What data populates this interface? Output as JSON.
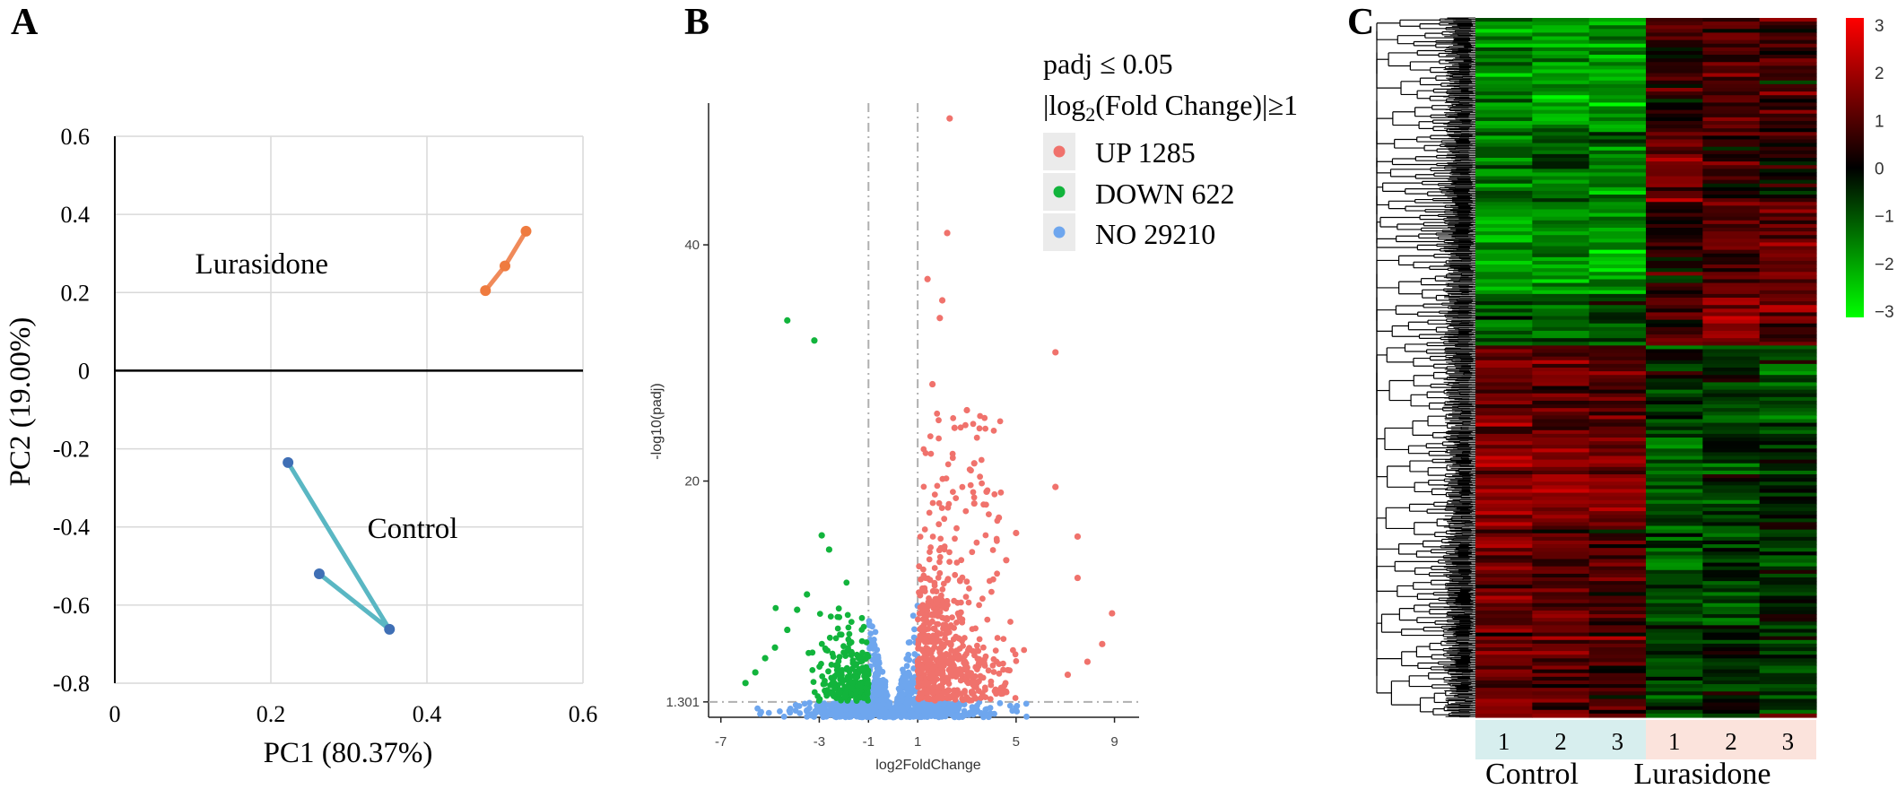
{
  "panels": {
    "a": {
      "letter": "A"
    },
    "b": {
      "letter": "B"
    },
    "c": {
      "letter": "C"
    }
  },
  "chart_data": [
    {
      "id": "pca",
      "type": "scatter",
      "title": "",
      "xlabel": "PC1 (80.37%)",
      "ylabel": "PC2 (19.00%)",
      "xlim": [
        0,
        0.6
      ],
      "ylim": [
        -0.8,
        0.6
      ],
      "x_ticks": [
        0,
        0.2,
        0.4,
        0.6
      ],
      "x_tick_labels": [
        "0",
        "0.2",
        "0.4",
        "0.6"
      ],
      "y_ticks": [
        0.6,
        0.4,
        0.2,
        0,
        -0.2,
        -0.4,
        -0.6,
        -0.8
      ],
      "y_tick_labels": [
        "0.6",
        "0.4",
        "0.2",
        "0",
        "-0.2",
        "-0.4",
        "-0.6",
        "-0.8"
      ],
      "grid": true,
      "series": [
        {
          "name": "Lurasidone",
          "color": "#f08a5a",
          "marker_color": "#ef7b3f",
          "points": [
            [
              0.475,
              0.205
            ],
            [
              0.5,
              0.268
            ],
            [
              0.527,
              0.357
            ]
          ],
          "path_order": [
            0,
            1,
            2
          ]
        },
        {
          "name": "Control",
          "color": "#5ab7c3",
          "marker_color": "#3f6fb5",
          "points": [
            [
              0.222,
              -0.235
            ],
            [
              0.262,
              -0.52
            ],
            [
              0.352,
              -0.662
            ]
          ],
          "path_order": [
            0,
            2,
            1
          ]
        }
      ]
    },
    {
      "id": "volcano",
      "type": "scatter",
      "title": "",
      "xlabel": "log2FoldChange",
      "ylabel": "-log10(padj)",
      "xlim": [
        -7.5,
        10
      ],
      "ylim": [
        0,
        52
      ],
      "x_ticks": [
        -7,
        -3,
        -1,
        1,
        5,
        9
      ],
      "x_tick_labels": [
        "-7",
        "-3",
        "-1",
        "1",
        "5",
        "9"
      ],
      "y_ticks": [
        1.301,
        20,
        40
      ],
      "y_tick_labels": [
        "1.301",
        "20",
        "40"
      ],
      "thresholds": {
        "fc": [
          -1,
          1
        ],
        "padj": 1.301
      },
      "legend": {
        "title_line1": "padj ≤ 0.05",
        "title_line2_pre": "|log",
        "title_line2_sub": "2",
        "title_line2_post": "(Fold Change)|≥1",
        "items": [
          {
            "label": "UP 1285",
            "color": "#f0726c"
          },
          {
            "label": "DOWN 622",
            "color": "#12b43c"
          },
          {
            "label": "NO 29210",
            "color": "#6ea6ee"
          }
        ]
      },
      "series": [
        {
          "name": "UP",
          "count": 1285,
          "color": "#f0726c",
          "highlight_points": [
            [
              2.3,
              50.7
            ],
            [
              2.2,
              41
            ],
            [
              1.4,
              37.1
            ],
            [
              2.0,
              35.3
            ],
            [
              1.9,
              33.8
            ],
            [
              6.6,
              30.9
            ],
            [
              1.6,
              28.2
            ],
            [
              3.0,
              26.0
            ],
            [
              2.5,
              24.5
            ],
            [
              3.3,
              21.5
            ],
            [
              6.6,
              19.5
            ],
            [
              3.3,
              18.1
            ],
            [
              4.3,
              16.9
            ],
            [
              7.5,
              15.3
            ],
            [
              7.5,
              11.8
            ],
            [
              8.9,
              8.8
            ],
            [
              8.5,
              6.2
            ],
            [
              7.9,
              4.7
            ],
            [
              7.1,
              3.6
            ],
            [
              4.6,
              13.3
            ],
            [
              5.0,
              15.6
            ],
            [
              3.8,
              19.1
            ]
          ]
        },
        {
          "name": "DOWN",
          "count": 622,
          "color": "#12b43c",
          "highlight_points": [
            [
              -4.3,
              33.6
            ],
            [
              -3.2,
              31.9
            ],
            [
              -2.9,
              15.4
            ],
            [
              -2.6,
              14.2
            ],
            [
              -6.0,
              2.9
            ],
            [
              -5.6,
              3.8
            ],
            [
              -5.2,
              5.0
            ],
            [
              -4.8,
              5.9
            ],
            [
              -4.3,
              7.4
            ],
            [
              -3.9,
              9.1
            ],
            [
              -3.5,
              10.4
            ]
          ]
        },
        {
          "name": "NO",
          "count": 29210,
          "color": "#6ea6ee"
        }
      ]
    },
    {
      "id": "heatmap",
      "type": "heatmap",
      "title": "",
      "groups": [
        {
          "name": "Control",
          "samples": [
            "1",
            "2",
            "3"
          ],
          "color": "#d7eeee"
        },
        {
          "name": "Lurasidone",
          "samples": [
            "1",
            "2",
            "3"
          ],
          "color": "#fbe3dc"
        }
      ],
      "colorbar": {
        "min": -3,
        "max": 3,
        "ticks": [
          3,
          2,
          1,
          0,
          -1,
          -2,
          -3
        ],
        "tick_labels": [
          "3",
          "2",
          "1",
          "0",
          "−1",
          "−2",
          "−3"
        ],
        "low_color": "#00ff00",
        "mid_color": "#000000",
        "high_color": "#ff0000"
      },
      "row_blocks": [
        {
          "rows": 30,
          "pattern": [
            -1.6,
            -1.8,
            -1.7,
            0.6,
            0.9,
            0.7
          ]
        },
        {
          "rows": 20,
          "pattern": [
            -1.3,
            -1.1,
            -1.4,
            1.3,
            0.4,
            0.3
          ]
        },
        {
          "rows": 25,
          "pattern": [
            -1.9,
            -1.6,
            -1.8,
            0.3,
            1.0,
            1.2
          ]
        },
        {
          "rows": 14,
          "pattern": [
            -1.1,
            -1.2,
            -0.9,
            0.8,
            1.4,
            1.1
          ]
        },
        {
          "rows": 25,
          "pattern": [
            1.4,
            1.2,
            1.0,
            -0.3,
            -0.6,
            -0.8
          ]
        },
        {
          "rows": 25,
          "pattern": [
            1.7,
            1.5,
            1.3,
            -1.2,
            -0.6,
            -0.4
          ]
        },
        {
          "rows": 26,
          "pattern": [
            1.3,
            1.0,
            0.9,
            -0.9,
            -0.6,
            -0.3
          ]
        },
        {
          "rows": 25,
          "pattern": [
            1.2,
            1.1,
            0.8,
            -0.6,
            -0.4,
            -0.5
          ]
        }
      ]
    }
  ]
}
